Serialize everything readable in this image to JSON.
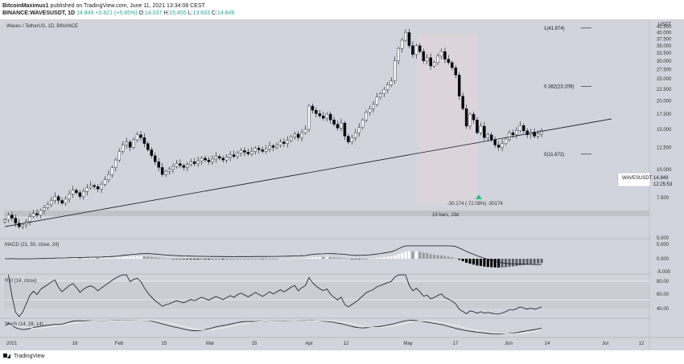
{
  "header": {
    "author": "BitcoinMaximus1",
    "published_text": "published on TradingView.com, June 11, 2021 13:34:08 CEST",
    "symbol_line": "BINANCE:WAVESUSDT, 1D",
    "ohlc": {
      "last": "14.849",
      "change": "+0.821 (+5.85%)",
      "o_label": "O:",
      "o": "14.037",
      "h_label": "H:",
      "h": "15.455",
      "l_label": "L:",
      "l": "13.633",
      "c_label": "C:",
      "c": "14.849"
    }
  },
  "price_label": "Waves / TetherUS, 1D, BINANCE",
  "currency": "USDT",
  "price_tag": {
    "symbol": "WAVESUSDT",
    "value": "14.849",
    "countdown": "12:25:53"
  },
  "fib": [
    {
      "label": "1(41.874)",
      "value": 41.874
    },
    {
      "label": "0.382(23.209)",
      "value": 23.209
    },
    {
      "label": "0(11.672)",
      "value": 11.672
    }
  ],
  "measure": {
    "text1": "-30.174 (-72.08%) -30174",
    "text2": "19 bars, 19d"
  },
  "indicators": {
    "macd": {
      "label": "MACD (21, 50, close, 24)",
      "ticks": [
        "5.000",
        "0.000",
        "-5.000"
      ]
    },
    "rsi": {
      "label": "RSI (14, close)",
      "ticks": [
        "80.00",
        "60.00",
        "40.00"
      ]
    },
    "stoch": {
      "label": "Stoch (14, 28, 14)"
    }
  },
  "footer": {
    "brand": "TradingView"
  },
  "colors": {
    "up": "#ffffff",
    "down": "#000000",
    "background": "#d1d4dc",
    "line": "#131722",
    "green_marker": "#26c281"
  },
  "chart_data": {
    "type": "candlestick",
    "title": "Waves / TetherUS, 1D, BINANCE",
    "yscale": "log",
    "ylim": [
      5,
      45
    ],
    "y_ticks": [
      "42.500",
      "40.000",
      "37.500",
      "35.000",
      "32.500",
      "30.000",
      "27.500",
      "25.000",
      "22.500",
      "20.000",
      "17.500",
      "15.000",
      "12.500",
      "10.000",
      "7.500",
      "5.000"
    ],
    "x_ticks": [
      "2021",
      "18",
      "Feb",
      "15",
      "Mar",
      "15",
      "Apr",
      "12",
      "May",
      "17",
      "Jun",
      "14",
      "Jul",
      "12"
    ],
    "series": [
      {
        "name": "WAVESUSDT",
        "close_series": [
          6.0,
          6.3,
          6.1,
          5.8,
          5.6,
          5.7,
          5.9,
          6.2,
          6.4,
          6.3,
          6.6,
          6.8,
          7.0,
          7.3,
          7.6,
          7.3,
          7.1,
          7.4,
          7.8,
          8.1,
          7.9,
          7.6,
          8.0,
          8.3,
          8.5,
          8.4,
          8.2,
          8.6,
          9.0,
          9.5,
          10.2,
          11.0,
          12.0,
          12.8,
          13.2,
          12.5,
          13.5,
          14.2,
          13.8,
          13.0,
          12.2,
          11.5,
          10.8,
          10.2,
          9.5,
          9.8,
          10.0,
          10.3,
          10.6,
          10.4,
          10.2,
          10.5,
          10.8,
          10.6,
          10.9,
          11.2,
          11.0,
          10.8,
          11.1,
          11.4,
          11.2,
          11.0,
          11.3,
          11.6,
          11.4,
          11.8,
          12.1,
          11.9,
          11.7,
          12.0,
          12.4,
          12.2,
          12.0,
          12.3,
          12.7,
          12.5,
          12.8,
          13.2,
          13.0,
          13.4,
          13.9,
          14.3,
          13.8,
          14.5,
          15.0,
          19.0,
          18.2,
          17.6,
          17.2,
          16.8,
          17.5,
          16.5,
          15.8,
          15.2,
          16.0,
          14.0,
          13.2,
          13.8,
          14.5,
          15.3,
          16.5,
          17.8,
          18.5,
          19.3,
          20.8,
          21.5,
          22.5,
          23.5,
          24.5,
          30.0,
          34.0,
          37.0,
          40.0,
          35.0,
          32.0,
          35.0,
          33.0,
          30.0,
          31.0,
          28.5,
          29.5,
          31.5,
          33.0,
          30.5,
          29.5,
          28.0,
          26.0,
          21.0,
          18.5,
          15.5,
          17.5,
          16.5,
          14.5,
          15.5,
          13.8,
          14.2,
          13.5,
          12.8,
          12.5,
          13.0,
          13.6,
          14.5,
          14.2,
          14.8,
          15.6,
          14.8,
          14.2,
          14.6,
          14.0,
          14.3,
          14.849
        ]
      }
    ],
    "trendline": {
      "from": [
        0,
        5.6
      ],
      "to": [
        152,
        14.9
      ]
    },
    "fib_levels": [
      41.874,
      23.209,
      11.672
    ],
    "macd_range": [
      -5,
      5
    ],
    "rsi_range": [
      20,
      90
    ]
  }
}
